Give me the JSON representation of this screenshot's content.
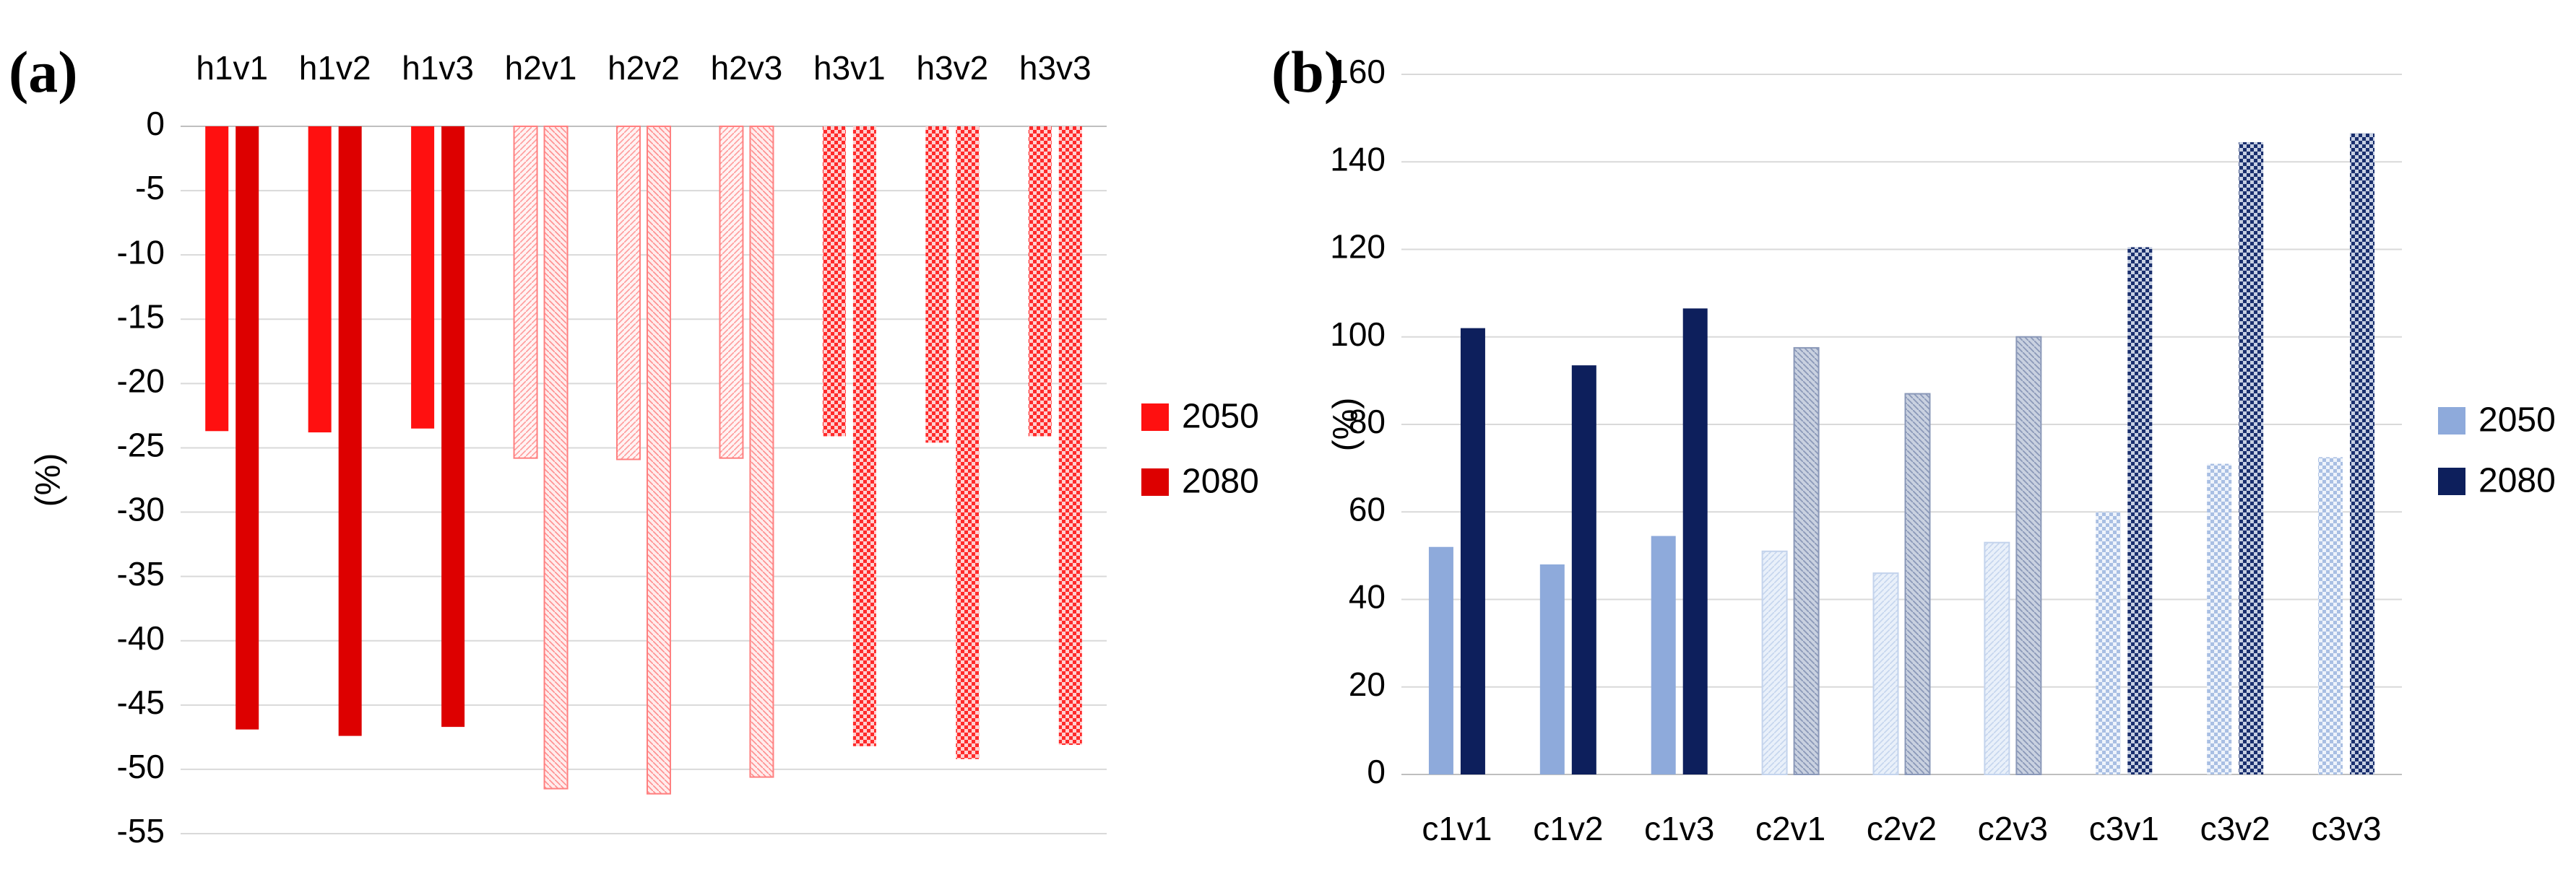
{
  "chart_data": [
    {
      "type": "bar",
      "panel_label": "(a)",
      "categories": [
        "h1v1",
        "h1v2",
        "h1v3",
        "h2v1",
        "h2v2",
        "h2v3",
        "h3v1",
        "h3v2",
        "h3v3"
      ],
      "series": [
        {
          "name": "2050",
          "values": [
            -23.7,
            -23.8,
            -23.5,
            -25.8,
            -25.9,
            -25.8,
            -24.1,
            -24.6,
            -24.1
          ]
        },
        {
          "name": "2080",
          "values": [
            -46.9,
            -47.4,
            -46.7,
            -51.5,
            -51.9,
            -50.6,
            -48.2,
            -49.2,
            -48.1
          ]
        }
      ],
      "ylabel": "(%)",
      "ylim": [
        -55,
        0
      ],
      "yticks": [
        0,
        -5,
        -10,
        -15,
        -20,
        -25,
        -30,
        -35,
        -40,
        -45,
        -50,
        -55
      ],
      "category_axis_position": "top",
      "legend": {
        "position": "right",
        "entries": [
          "2050",
          "2080"
        ]
      },
      "colors": {
        "solid_2050": "#ff1010",
        "solid_2080": "#dd0000",
        "light": "#ff8080",
        "light_fill": "#ffe6e6",
        "pattern": "#ff3030"
      }
    },
    {
      "type": "bar",
      "panel_label": "(b)",
      "categories": [
        "c1v1",
        "c1v2",
        "c1v3",
        "c2v1",
        "c2v2",
        "c2v3",
        "c3v1",
        "c3v2",
        "c3v3"
      ],
      "series": [
        {
          "name": "2050",
          "values": [
            52,
            48,
            54.5,
            51,
            46,
            53,
            60,
            71,
            72.5
          ]
        },
        {
          "name": "2080",
          "values": [
            102,
            93.5,
            106.5,
            97.5,
            87,
            100,
            120.5,
            144.5,
            146.5
          ]
        }
      ],
      "ylabel": "(%)",
      "ylim": [
        0,
        160
      ],
      "yticks": [
        0,
        20,
        40,
        60,
        80,
        100,
        120,
        140,
        160
      ],
      "category_axis_position": "bottom",
      "legend": {
        "position": "right",
        "entries": [
          "2050",
          "2080"
        ]
      },
      "colors": {
        "solid_2050": "#8eaadb",
        "solid_2080": "#0d1f5c",
        "light_2050": "#dde8f7",
        "light_2080": "#b4c0d6",
        "pattern_2050": "#8eaadb",
        "pattern_2080": "#1f3573"
      }
    }
  ]
}
